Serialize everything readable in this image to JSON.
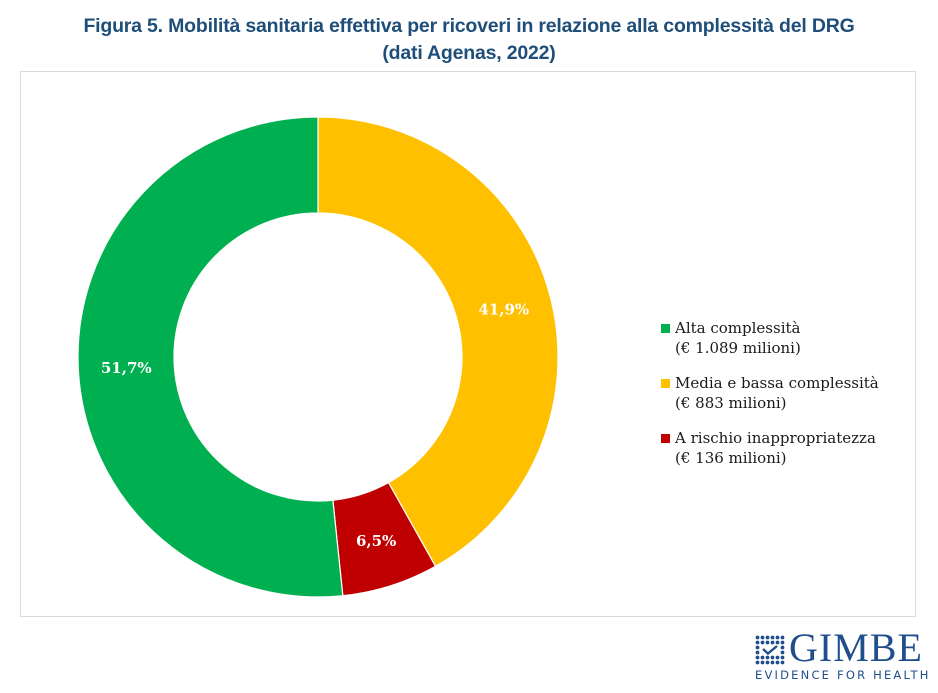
{
  "title": {
    "line1": "Figura 5. Mobilità sanitaria effettiva per ricoveri in relazione alla complessità del DRG",
    "line2": "(dati Agenas, 2022)"
  },
  "chart_data": {
    "type": "pie",
    "variant": "donut",
    "title": "Figura 5. Mobilità sanitaria effettiva per ricoveri in relazione alla complessità del DRG (dati Agenas, 2022)",
    "start": "top",
    "direction": "clockwise",
    "legend_position": "right",
    "slices": [
      {
        "name": "Media e bassa complessità",
        "amount_label": "(€ 883 milioni)",
        "amount_million_eur": 883,
        "value": 41.9,
        "label": "41,9%",
        "color": "#ffc000"
      },
      {
        "name": "A rischio inappropriatezza",
        "amount_label": "(€ 136 milioni)",
        "amount_million_eur": 136,
        "value": 6.5,
        "label": "6,5%",
        "color": "#c00000"
      },
      {
        "name": "Alta complessità",
        "amount_label": "(€ 1.089 milioni)",
        "amount_million_eur": 1089,
        "value": 51.7,
        "label": "51,7%",
        "color": "#00b050"
      }
    ],
    "legend": [
      {
        "line1": "Alta complessità",
        "line2": "(€ 1.089 milioni)",
        "color": "#00b050"
      },
      {
        "line1": "Media e bassa complessità",
        "line2": "(€ 883 milioni)",
        "color": "#ffc000"
      },
      {
        "line1": "A rischio inappropriatezza",
        "line2": "(€ 136 milioni)",
        "color": "#c00000"
      }
    ]
  },
  "logo": {
    "name": "GIMBE",
    "tagline": "EVIDENCE FOR HEALTH",
    "color": "#1f4e8c"
  }
}
